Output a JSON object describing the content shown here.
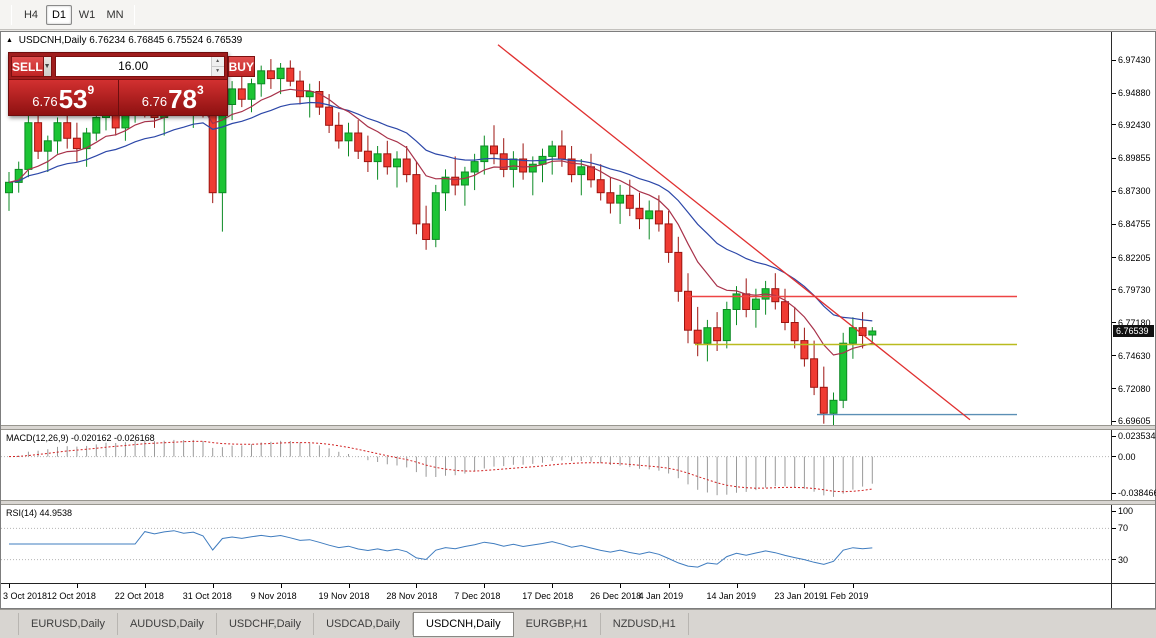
{
  "toolbar": {
    "timeframes": [
      {
        "label": "H4",
        "active": false
      },
      {
        "label": "D1",
        "active": true
      },
      {
        "label": "W1",
        "active": false
      },
      {
        "label": "MN",
        "active": false
      }
    ]
  },
  "chart": {
    "title_symbol": "USDCNH,Daily",
    "title_ohlc": "6.76234 6.76845 6.75524 6.76539",
    "current_price": "6.76539",
    "price_axis_labels": [
      "6.97430",
      "6.94880",
      "6.92430",
      "6.89855",
      "6.87300",
      "6.84755",
      "6.82205",
      "6.79730",
      "6.77180",
      "6.74630",
      "6.72080",
      "6.69605"
    ]
  },
  "trade_panel": {
    "sell_label": "SELL",
    "buy_label": "BUY",
    "volume": "16.00",
    "sell_price": {
      "prefix": "6.76",
      "big": "53",
      "sup": "9"
    },
    "buy_price": {
      "prefix": "6.76",
      "big": "78",
      "sup": "3"
    }
  },
  "macd_panel": {
    "label": "MACD(12,26,9) -0.020162 -0.026168",
    "axis_labels": [
      "0.023534",
      "0.00",
      "-0.038466"
    ]
  },
  "rsi_panel": {
    "label": "RSI(14) 44.9538",
    "axis_labels": [
      "100",
      "70",
      "30"
    ]
  },
  "date_axis": {
    "labels": [
      "3 Oct 2018",
      "12 Oct 2018",
      "22 Oct 2018",
      "31 Oct 2018",
      "9 Nov 2018",
      "19 Nov 2018",
      "28 Nov 2018",
      "7 Dec 2018",
      "17 Dec 2018",
      "26 Dec 2018",
      "4 Jan 2019",
      "14 Jan 2019",
      "23 Jan 2019",
      "1 Feb 2019"
    ],
    "tick_indices": [
      0,
      7,
      14,
      21,
      28,
      35,
      42,
      49,
      56,
      63,
      68,
      75,
      82,
      87
    ]
  },
  "tabs": [
    {
      "label": "EURUSD,Daily",
      "active": false
    },
    {
      "label": "AUDUSD,Daily",
      "active": false
    },
    {
      "label": "USDCHF,Daily",
      "active": false
    },
    {
      "label": "USDCAD,Daily",
      "active": false
    },
    {
      "label": "USDCNH,Daily",
      "active": true
    },
    {
      "label": "EURGBP,H1",
      "active": false
    },
    {
      "label": "NZDUSD,H1",
      "active": false
    }
  ],
  "chart_data": {
    "type": "candlestick",
    "symbol": "USDCNH",
    "timeframe": "Daily",
    "title": "USDCNH,Daily 6.76234 6.76845 6.75524 6.76539",
    "price_range": {
      "max": 6.9743,
      "min": 6.69605
    },
    "x_tick_labels": [
      "3 Oct 2018",
      "12 Oct 2018",
      "22 Oct 2018",
      "31 Oct 2018",
      "9 Nov 2018",
      "19 Nov 2018",
      "28 Nov 2018",
      "7 Dec 2018",
      "17 Dec 2018",
      "26 Dec 2018",
      "4 Jan 2019",
      "14 Jan 2019",
      "23 Jan 2019",
      "1 Feb 2019"
    ],
    "colors": {
      "up": "#1cc434",
      "up_border": "#0c8a24",
      "down": "#ef3b32",
      "down_border": "#9c1410",
      "ma_fast": "#a8324a",
      "ma_slow": "#2c47a8"
    },
    "candles": [
      [
        6.872,
        6.888,
        6.858,
        6.88
      ],
      [
        6.88,
        6.896,
        6.872,
        6.89
      ],
      [
        6.89,
        6.932,
        6.884,
        6.926
      ],
      [
        6.926,
        6.936,
        6.898,
        6.904
      ],
      [
        6.904,
        6.916,
        6.888,
        6.912
      ],
      [
        6.912,
        6.93,
        6.902,
        6.926
      ],
      [
        6.926,
        6.936,
        6.906,
        6.914
      ],
      [
        6.914,
        6.926,
        6.896,
        6.906
      ],
      [
        6.906,
        6.922,
        6.892,
        6.918
      ],
      [
        6.918,
        6.936,
        6.912,
        6.93
      ],
      [
        6.93,
        6.942,
        6.92,
        6.936
      ],
      [
        6.936,
        6.946,
        6.916,
        6.922
      ],
      [
        6.922,
        6.94,
        6.912,
        6.934
      ],
      [
        6.934,
        6.95,
        6.926,
        6.944
      ],
      [
        6.944,
        6.956,
        6.93,
        6.938
      ],
      [
        6.938,
        6.95,
        6.922,
        6.93
      ],
      [
        6.93,
        6.946,
        6.916,
        6.942
      ],
      [
        6.942,
        6.956,
        6.932,
        6.95
      ],
      [
        6.95,
        6.96,
        6.936,
        6.942
      ],
      [
        6.942,
        6.954,
        6.922,
        6.948
      ],
      [
        6.948,
        6.958,
        6.93,
        6.936
      ],
      [
        6.936,
        6.956,
        6.864,
        6.872
      ],
      [
        6.872,
        6.948,
        6.842,
        6.94
      ],
      [
        6.94,
        6.958,
        6.928,
        6.952
      ],
      [
        6.952,
        6.964,
        6.938,
        6.944
      ],
      [
        6.944,
        6.96,
        6.934,
        6.956
      ],
      [
        6.956,
        6.97,
        6.946,
        6.966
      ],
      [
        6.966,
        6.975,
        6.952,
        6.96
      ],
      [
        6.96,
        6.972,
        6.948,
        6.968
      ],
      [
        6.968,
        6.974,
        6.954,
        6.958
      ],
      [
        6.958,
        6.966,
        6.94,
        6.946
      ],
      [
        6.946,
        6.956,
        6.93,
        6.95
      ],
      [
        6.95,
        6.958,
        6.932,
        6.938
      ],
      [
        6.938,
        6.948,
        6.918,
        6.924
      ],
      [
        6.924,
        6.934,
        6.906,
        6.912
      ],
      [
        6.912,
        6.926,
        6.9,
        6.918
      ],
      [
        6.918,
        6.928,
        6.898,
        6.904
      ],
      [
        6.904,
        6.916,
        6.888,
        6.896
      ],
      [
        6.896,
        6.908,
        6.882,
        6.902
      ],
      [
        6.902,
        6.912,
        6.886,
        6.892
      ],
      [
        6.892,
        6.904,
        6.876,
        6.898
      ],
      [
        6.898,
        6.908,
        6.88,
        6.886
      ],
      [
        6.886,
        6.896,
        6.84,
        6.848
      ],
      [
        6.848,
        6.862,
        6.828,
        6.836
      ],
      [
        6.836,
        6.878,
        6.83,
        6.872
      ],
      [
        6.872,
        6.89,
        6.858,
        6.884
      ],
      [
        6.884,
        6.9,
        6.87,
        6.878
      ],
      [
        6.878,
        6.892,
        6.862,
        6.888
      ],
      [
        6.888,
        6.902,
        6.874,
        6.896
      ],
      [
        6.896,
        6.916,
        6.886,
        6.908
      ],
      [
        6.908,
        6.924,
        6.894,
        6.902
      ],
      [
        6.902,
        6.914,
        6.884,
        6.89
      ],
      [
        6.89,
        6.904,
        6.876,
        6.898
      ],
      [
        6.898,
        6.91,
        6.882,
        6.888
      ],
      [
        6.888,
        6.9,
        6.87,
        6.894
      ],
      [
        6.894,
        6.906,
        6.88,
        6.9
      ],
      [
        6.9,
        6.912,
        6.886,
        6.908
      ],
      [
        6.908,
        6.92,
        6.892,
        6.898
      ],
      [
        6.898,
        6.908,
        6.88,
        6.886
      ],
      [
        6.886,
        6.898,
        6.87,
        6.892
      ],
      [
        6.892,
        6.902,
        6.876,
        6.882
      ],
      [
        6.882,
        6.894,
        6.866,
        6.872
      ],
      [
        6.872,
        6.884,
        6.856,
        6.864
      ],
      [
        6.864,
        6.878,
        6.848,
        6.87
      ],
      [
        6.87,
        6.882,
        6.854,
        6.86
      ],
      [
        6.86,
        6.872,
        6.844,
        6.852
      ],
      [
        6.852,
        6.866,
        6.836,
        6.858
      ],
      [
        6.858,
        6.87,
        6.842,
        6.848
      ],
      [
        6.848,
        6.858,
        6.818,
        6.826
      ],
      [
        6.826,
        6.838,
        6.788,
        6.796
      ],
      [
        6.796,
        6.81,
        6.756,
        6.766
      ],
      [
        6.766,
        6.784,
        6.746,
        6.756
      ],
      [
        6.756,
        6.774,
        6.742,
        6.768
      ],
      [
        6.768,
        6.78,
        6.75,
        6.758
      ],
      [
        6.758,
        6.788,
        6.752,
        6.782
      ],
      [
        6.782,
        6.8,
        6.77,
        6.794
      ],
      [
        6.794,
        6.806,
        6.776,
        6.782
      ],
      [
        6.782,
        6.798,
        6.768,
        6.79
      ],
      [
        6.79,
        6.804,
        6.778,
        6.798
      ],
      [
        6.798,
        6.81,
        6.782,
        6.788
      ],
      [
        6.788,
        6.798,
        6.766,
        6.772
      ],
      [
        6.772,
        6.784,
        6.752,
        6.758
      ],
      [
        6.758,
        6.768,
        6.738,
        6.744
      ],
      [
        6.744,
        6.758,
        6.716,
        6.722
      ],
      [
        6.722,
        6.738,
        6.694,
        6.702
      ],
      [
        6.702,
        6.718,
        6.69,
        6.712
      ],
      [
        6.712,
        6.764,
        6.706,
        6.756
      ],
      [
        6.756,
        6.776,
        6.744,
        6.768
      ],
      [
        6.768,
        6.78,
        6.752,
        6.762
      ],
      [
        6.76234,
        6.76845,
        6.75524,
        6.76539
      ]
    ],
    "overlays": {
      "ma_fast_period": 10,
      "ma_slow_period": 21
    },
    "lines": {
      "trend": {
        "color": "#e03030",
        "x1_frac": 0.448,
        "price1": 6.986,
        "x2_frac": 0.873,
        "price2": 6.697
      },
      "horizontal": [
        {
          "price": 6.792,
          "color": "#ee4444",
          "x1_frac": 0.618,
          "x2_frac": 0.915
        },
        {
          "price": 6.755,
          "color": "#b9bb1f",
          "x1_frac": 0.625,
          "x2_frac": 0.915
        },
        {
          "price": 6.701,
          "color": "#5b8fb5",
          "x1_frac": 0.735,
          "x2_frac": 0.915
        }
      ]
    },
    "macd": {
      "params": [
        12,
        26,
        9
      ],
      "value": -0.020162,
      "signal": -0.026168,
      "scale_max": 0.023534,
      "scale_min": -0.038466
    },
    "rsi": {
      "period": 14,
      "value": 44.9538,
      "levels": [
        70,
        30
      ]
    }
  }
}
